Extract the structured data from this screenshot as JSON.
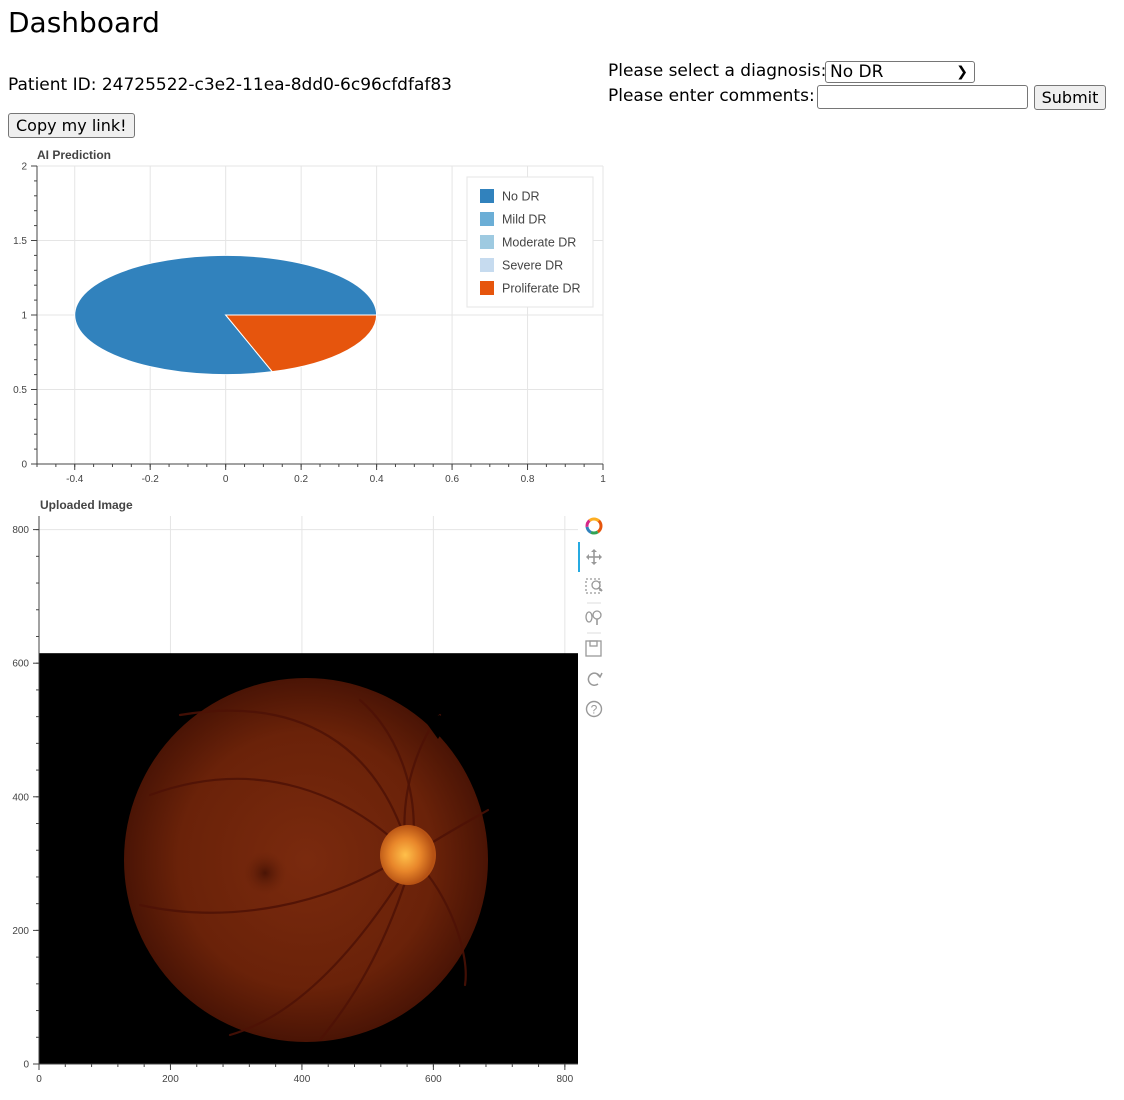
{
  "page": {
    "title": "Dashboard",
    "patient_label": "Patient ID: 24725522-c3e2-11ea-8dd0-6c96cfdfaf83",
    "copy_button": "Copy my link!"
  },
  "form": {
    "diagnosis_label": "Please select a diagnosis:",
    "diagnosis_selected": "No DR",
    "comments_label": "Please enter comments:",
    "comments_value": "",
    "submit_label": "Submit"
  },
  "chart_data": [
    {
      "type": "pie",
      "title": "AI Prediction",
      "categories": [
        "No DR",
        "Mild DR",
        "Moderate DR",
        "Severe DR",
        "Proliferate DR"
      ],
      "values": [
        0.8,
        0.0,
        0.0,
        0.0,
        0.2
      ],
      "colors": [
        "#3182bd",
        "#6baed6",
        "#9ecae1",
        "#c6dbef",
        "#e6550d"
      ],
      "xlim": [
        -0.5,
        1
      ],
      "ylim": [
        0,
        2
      ],
      "x_ticks": [
        "-0.4",
        "-0.2",
        "0",
        "0.2",
        "0.4",
        "0.6",
        "0.8",
        "1"
      ],
      "y_ticks": [
        "0",
        "0.5",
        "1",
        "1.5",
        "2"
      ],
      "legend_position": "top-right",
      "grid": true
    },
    {
      "type": "image",
      "title": "Uploaded Image",
      "xlim": [
        0,
        820
      ],
      "ylim": [
        0,
        820
      ],
      "x_ticks": [
        "0",
        "200",
        "400",
        "600",
        "800"
      ],
      "y_ticks": [
        "0",
        "200",
        "400",
        "600",
        "800"
      ],
      "image_extent": [
        0,
        820,
        0,
        615
      ],
      "image_content": "retinal fundus photograph",
      "grid": true
    }
  ],
  "toolbar": {
    "tools": [
      {
        "icon": "bokeh-logo-icon"
      },
      {
        "icon": "pan-icon"
      },
      {
        "icon": "box-zoom-icon"
      },
      {
        "icon": "wheel-zoom-icon"
      },
      {
        "icon": "save-icon"
      },
      {
        "icon": "reset-icon"
      },
      {
        "icon": "help-icon"
      }
    ]
  }
}
